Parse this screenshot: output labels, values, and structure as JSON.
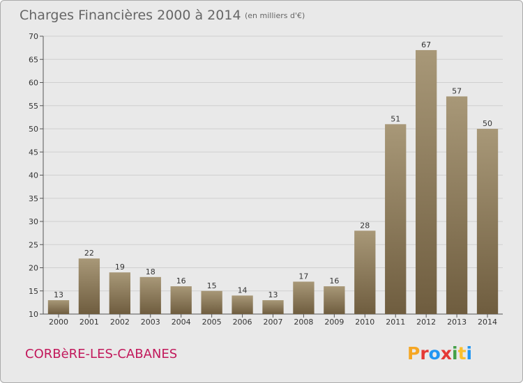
{
  "header": {
    "title": "Charges Financières 2000 à 2014",
    "unit": "(en milliers d'€)"
  },
  "footer": {
    "commune": "CORBèRE-LES-CABANES",
    "logo": "Proxiti",
    "logo_colors": [
      "#f5a623",
      "#e53935",
      "#2196f3",
      "#e53935",
      "#43a047",
      "#fbc02d",
      "#2196f3"
    ]
  },
  "colors": {
    "bar_top": "#a89878",
    "bar_bottom": "#6f5d3f",
    "background": "#e9e9e9",
    "commune_text": "#c2185b"
  },
  "chart_data": {
    "type": "bar",
    "title": "Charges Financières 2000 à 2014",
    "subtitle": "(en milliers d'€)",
    "categories": [
      "2000",
      "2001",
      "2002",
      "2003",
      "2004",
      "2005",
      "2006",
      "2007",
      "2008",
      "2009",
      "2010",
      "2011",
      "2012",
      "2013",
      "2014"
    ],
    "values": [
      13,
      22,
      19,
      18,
      16,
      15,
      14,
      13,
      17,
      16,
      28,
      51,
      67,
      57,
      50
    ],
    "ylim": [
      10,
      70
    ],
    "yticks": [
      10,
      15,
      20,
      25,
      30,
      35,
      40,
      45,
      50,
      55,
      60,
      65,
      70
    ],
    "grid": true
  }
}
